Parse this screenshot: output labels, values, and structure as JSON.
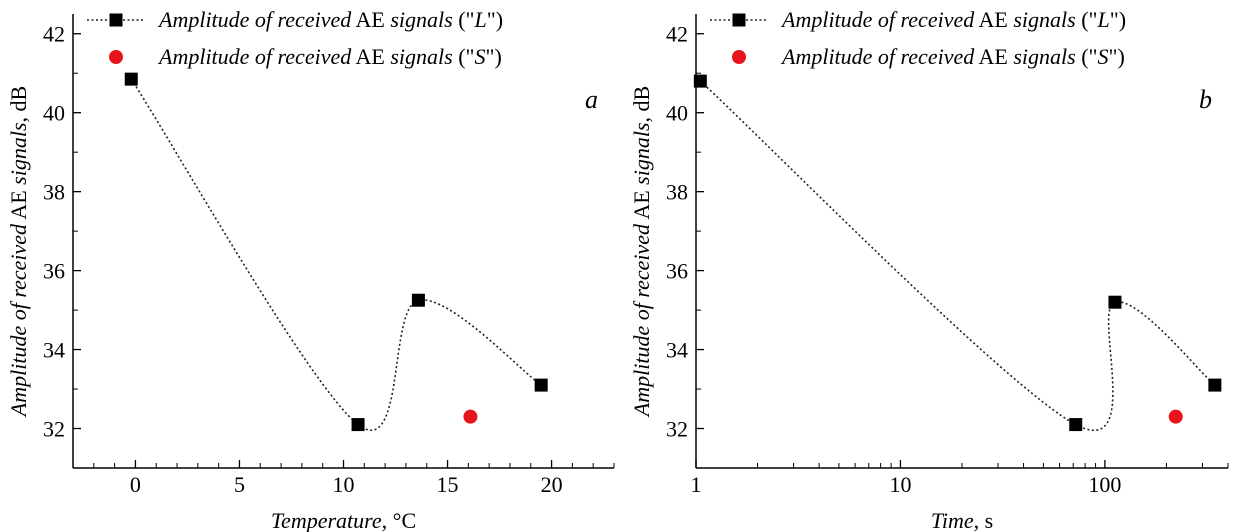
{
  "chart_data": [
    {
      "type": "scatter",
      "panel_label": "a",
      "xlabel": {
        "italic": "Temperature",
        "rest": ", °C"
      },
      "ylabel": {
        "italic1": "Amplitude of received",
        "plain": " AE ",
        "italic2": "signals",
        "rest": ", dB"
      },
      "x_scale": "linear",
      "xlim": [
        -3,
        23
      ],
      "ylim": [
        31,
        42.5
      ],
      "x_ticks": [
        0,
        5,
        10,
        15,
        20
      ],
      "x_tick_labels": [
        "0",
        "5",
        "10",
        "15",
        "20"
      ],
      "y_ticks": [
        32,
        34,
        36,
        38,
        40,
        42
      ],
      "y_tick_labels": [
        "32",
        "34",
        "36",
        "38",
        "40",
        "42"
      ],
      "legend_position": "top",
      "series": [
        {
          "name": {
            "italic1": "Amplitude of received",
            "plain": " AE ",
            "italic2": "signals",
            "q": " (\"",
            "letter": "L",
            "q2": "\")"
          },
          "marker": "square",
          "color": "#000000",
          "line": "dotted",
          "x": [
            -0.2,
            10.7,
            13.6,
            19.5
          ],
          "y": [
            40.85,
            32.1,
            35.25,
            33.1
          ]
        },
        {
          "name": {
            "italic1": "Amplitude of received",
            "plain": " AE ",
            "italic2": "signals",
            "q": " (\"",
            "letter": "S",
            "q2": "\")"
          },
          "marker": "circle",
          "color": "#e8141b",
          "line": "none",
          "x": [
            16.1
          ],
          "y": [
            32.3
          ]
        }
      ]
    },
    {
      "type": "scatter",
      "panel_label": "b",
      "xlabel": {
        "italic": "Time",
        "rest": ", s"
      },
      "ylabel": {
        "italic1": "Amplitude of received",
        "plain": " AE ",
        "italic2": "signals",
        "rest": ", dB"
      },
      "x_scale": "log",
      "xlim": [
        1,
        400
      ],
      "ylim": [
        31,
        42.5
      ],
      "x_ticks": [
        1,
        10,
        100
      ],
      "x_tick_labels": [
        "1",
        "10",
        "100"
      ],
      "y_ticks": [
        32,
        34,
        36,
        38,
        40,
        42
      ],
      "y_tick_labels": [
        "32",
        "34",
        "36",
        "38",
        "40",
        "42"
      ],
      "legend_position": "top",
      "series": [
        {
          "name": {
            "italic1": "Amplitude of received",
            "plain": " AE ",
            "italic2": "signals",
            "q": " (\"",
            "letter": "L",
            "q2": "\")"
          },
          "marker": "square",
          "color": "#000000",
          "line": "dotted",
          "x": [
            1.05,
            72,
            112,
            345
          ],
          "y": [
            40.8,
            32.1,
            35.2,
            33.1
          ]
        },
        {
          "name": {
            "italic1": "Amplitude of received",
            "plain": " AE ",
            "italic2": "signals",
            "q": " (\"",
            "letter": "S",
            "q2": "\")"
          },
          "marker": "circle",
          "color": "#e8141b",
          "line": "none",
          "x": [
            222
          ],
          "y": [
            32.3
          ]
        }
      ]
    }
  ]
}
